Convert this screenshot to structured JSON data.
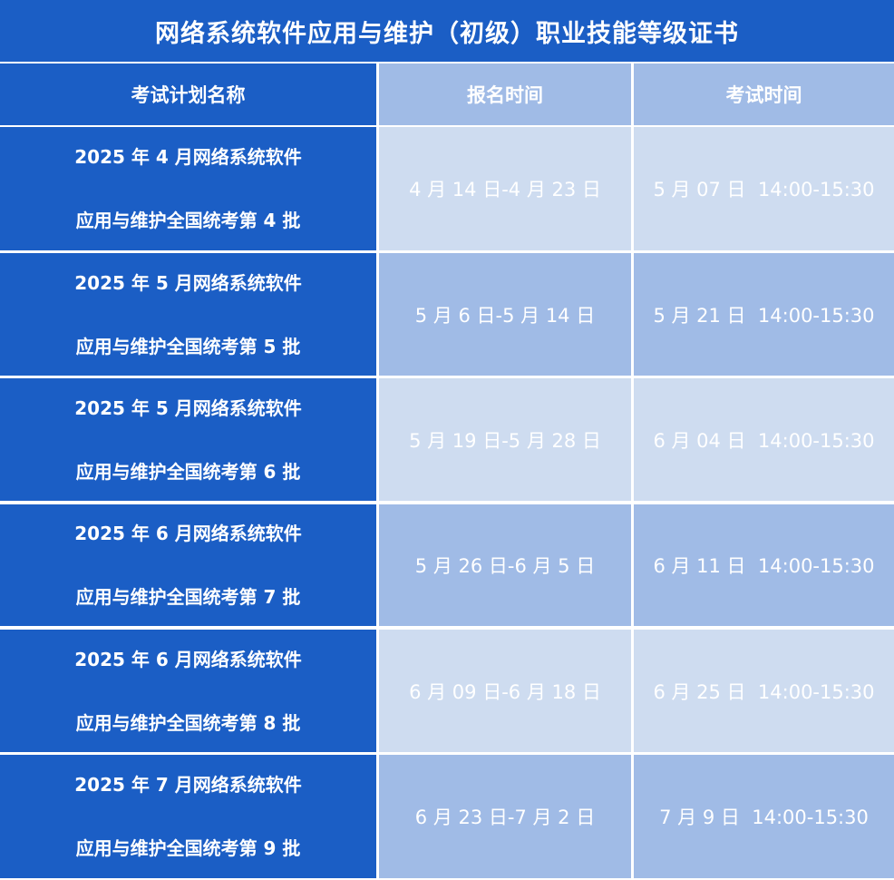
{
  "title": "网络系统软件应用与维护（初级）职业技能等级证书",
  "headers": [
    "考试计划名称",
    "报名时间",
    "考试时间"
  ],
  "rows": [
    {
      "name_line1": "2025 年 4 月网络系统软件",
      "name_line2": "应用与维护全国统考第 4 批",
      "registration": "4 月 14 日-4 月 23 日",
      "exam": "5 月 07 日  14:00-15:30"
    },
    {
      "name_line1": "2025 年 5 月网络系统软件",
      "name_line2": "应用与维护全国统考第 5 批",
      "registration": "5 月 6 日-5 月 14 日",
      "exam": "5 月 21 日  14:00-15:30"
    },
    {
      "name_line1": "2025 年 5 月网络系统软件",
      "name_line2": "应用与维护全国统考第 6 批",
      "registration": "5 月 19 日-5 月 28 日",
      "exam": "6 月 04 日  14:00-15:30"
    },
    {
      "name_line1": "2025 年 6 月网络系统软件",
      "name_line2": "应用与维护全国统考第 7 批",
      "registration": "5 月 26 日-6 月 5 日",
      "exam": "6 月 11 日  14:00-15:30"
    },
    {
      "name_line1": "2025 年 6 月网络系统软件",
      "name_line2": "应用与维护全国统考第 8 批",
      "registration": "6 月 09 日-6 月 18 日",
      "exam": "6 月 25 日  14:00-15:30"
    },
    {
      "name_line1": "2025 年 7 月网络系统软件",
      "name_line2": "应用与维护全国统考第 9 批",
      "registration": "6 月 23 日-7 月 2 日",
      "exam": "7 月 9 日  14:00-15:30"
    }
  ],
  "colors": {
    "primary": "#1b5ec5",
    "row_light": "#cedcf0",
    "row_mid": "#a0bbe6"
  }
}
